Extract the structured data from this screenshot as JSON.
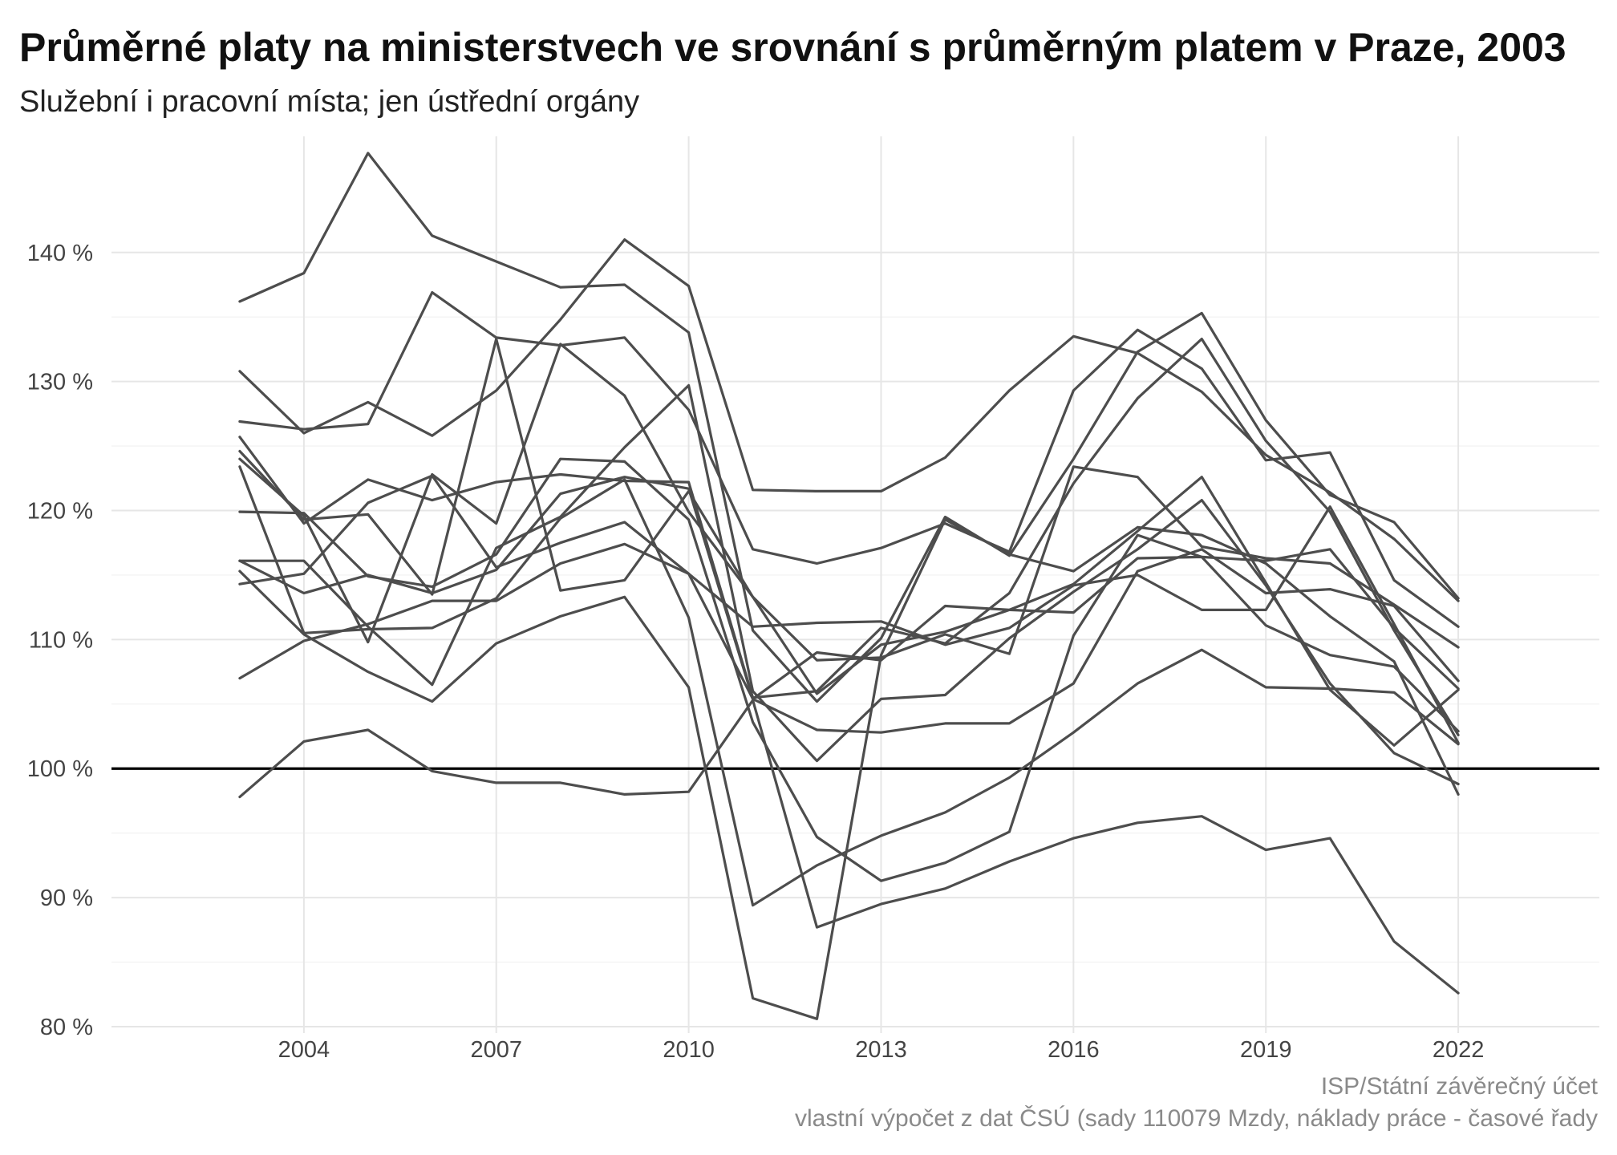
{
  "title": "Průměrné platy na ministerstvech ve srovnání s průměrným platem v Praze, 2003",
  "subtitle": "Služební i pracovní místa; jen ústřední orgány",
  "caption": {
    "line1": "ISP/Státní závěrečný účet",
    "line2": "vlastní výpočet z dat ČSÚ (sady 110079 Mzdy, náklady práce - časové řady"
  },
  "colors": {
    "line": "#4d4d4d",
    "reference": "#000000",
    "grid": "#e6e6e6",
    "background": "#ffffff"
  },
  "chart_data": {
    "type": "line",
    "title": "Průměrné platy na ministerstvech ve srovnání s průměrným platem v Praze, 2003",
    "subtitle": "Služební i pracovní místa; jen ústřední orgány",
    "xlabel": "",
    "ylabel": "",
    "x": [
      2003,
      2004,
      2005,
      2006,
      2007,
      2008,
      2009,
      2010,
      2011,
      2012,
      2013,
      2014,
      2015,
      2016,
      2017,
      2018,
      2019,
      2020,
      2021,
      2022
    ],
    "xlim": [
      2001.0,
      2024.2
    ],
    "ylim": [
      79.5,
      149
    ],
    "x_ticks": [
      2004,
      2007,
      2010,
      2013,
      2016,
      2019,
      2022
    ],
    "x_tick_labels": [
      "2004",
      "2007",
      "2010",
      "2013",
      "2016",
      "2019",
      "2022"
    ],
    "y_ticks": [
      80,
      90,
      100,
      110,
      120,
      130,
      140
    ],
    "y_tick_labels": [
      "80 %",
      "90 %",
      "100 %",
      "110 %",
      "120 %",
      "130 %",
      "140 %"
    ],
    "reference_line": 100,
    "grid": true,
    "legend": "none",
    "series": [
      {
        "values": [
          136.2,
          138.4,
          147.7,
          141.3,
          139.3,
          137.3,
          137.5,
          133.8,
          110.7,
          105.2,
          110.1,
          119.5,
          116.5,
          124.0,
          132.3,
          135.3,
          127.0,
          121.2,
          119.1,
          113.2
        ]
      },
      {
        "values": [
          130.8,
          126.0,
          128.4,
          125.8,
          129.3,
          134.8,
          141.0,
          137.4,
          121.6,
          121.5,
          121.5,
          124.1,
          129.3,
          133.5,
          132.2,
          129.2,
          124.3,
          121.4,
          117.8,
          113.0
        ]
      },
      {
        "values": [
          126.9,
          126.3,
          126.7,
          136.9,
          133.4,
          132.8,
          133.4,
          127.8,
          117.0,
          115.9,
          117.1,
          119.0,
          116.8,
          129.3,
          134.0,
          131.0,
          123.9,
          124.5,
          114.6,
          111.0
        ]
      },
      {
        "values": [
          125.7,
          119.0,
          122.4,
          120.8,
          122.2,
          122.8,
          122.3,
          122.2,
          105.5,
          106.0,
          110.9,
          109.7,
          113.6,
          122.1,
          128.7,
          133.3,
          125.4,
          119.9,
          110.7,
          102.6
        ]
      },
      {
        "values": [
          124.6,
          119.3,
          119.7,
          113.5,
          133.3,
          113.8,
          114.6,
          121.5,
          113.3,
          108.4,
          108.6,
          110.4,
          108.9,
          123.4,
          122.6,
          117.2,
          116.3,
          115.9,
          112.7,
          109.4
        ]
      },
      {
        "values": [
          124.0,
          119.6,
          109.8,
          122.8,
          119.0,
          132.9,
          128.9,
          119.9,
          113.3,
          105.8,
          109.6,
          110.6,
          112.3,
          114.3,
          118.4,
          122.6,
          114.4,
          106.1,
          101.8,
          106.1
        ]
      },
      {
        "values": [
          119.9,
          119.8,
          114.9,
          114.1,
          116.6,
          124.0,
          123.8,
          119.3,
          103.6,
          94.7,
          91.3,
          92.7,
          95.1,
          110.3,
          118.1,
          116.4,
          111.1,
          108.8,
          107.9,
          102.9
        ]
      },
      {
        "values": [
          116.1,
          116.1,
          111.0,
          106.5,
          117.1,
          119.5,
          124.9,
          129.7,
          106.0,
          100.6,
          105.4,
          105.7,
          110.1,
          113.7,
          117.0,
          120.8,
          114.2,
          106.6,
          101.2,
          98.8
        ]
      },
      {
        "values": [
          115.3,
          110.4,
          107.5,
          105.2,
          109.7,
          111.8,
          113.3,
          106.3,
          82.2,
          80.6,
          108.8,
          119.3,
          116.6,
          115.3,
          118.7,
          118.1,
          115.9,
          111.8,
          108.3,
          98.0
        ]
      },
      {
        "values": [
          116.1,
          113.6,
          115.0,
          113.6,
          115.4,
          121.3,
          122.6,
          121.7,
          105.4,
          103.0,
          102.8,
          103.5,
          103.5,
          106.6,
          115.3,
          117.0,
          113.6,
          113.9,
          112.6,
          106.8
        ]
      },
      {
        "values": [
          114.3,
          115.1,
          120.6,
          122.7,
          115.6,
          117.5,
          119.1,
          115.1,
          105.4,
          109.0,
          108.4,
          112.6,
          112.3,
          112.1,
          116.3,
          116.4,
          116.1,
          117.0,
          110.9,
          106.2
        ]
      },
      {
        "values": [
          107.0,
          109.9,
          111.2,
          113.0,
          113.0,
          115.9,
          117.4,
          115.1,
          111.0,
          111.3,
          111.4,
          109.6,
          110.9,
          114.2,
          115.0,
          112.3,
          112.3,
          120.3,
          111.2,
          102.0
        ]
      },
      {
        "values": [
          123.4,
          110.5,
          110.8,
          110.9,
          113.2,
          119.4,
          122.4,
          111.7,
          89.4,
          92.5,
          94.8,
          96.6,
          99.3,
          102.8,
          106.6,
          109.2,
          106.3,
          106.2,
          105.9,
          101.9
        ]
      },
      {
        "values": [
          97.8,
          102.1,
          103.0,
          99.8,
          98.9,
          98.9,
          98.0,
          98.2,
          105.3,
          87.7,
          89.5,
          90.7,
          92.8,
          94.6,
          95.8,
          96.3,
          93.7,
          94.6,
          86.6,
          82.6
        ]
      }
    ]
  }
}
